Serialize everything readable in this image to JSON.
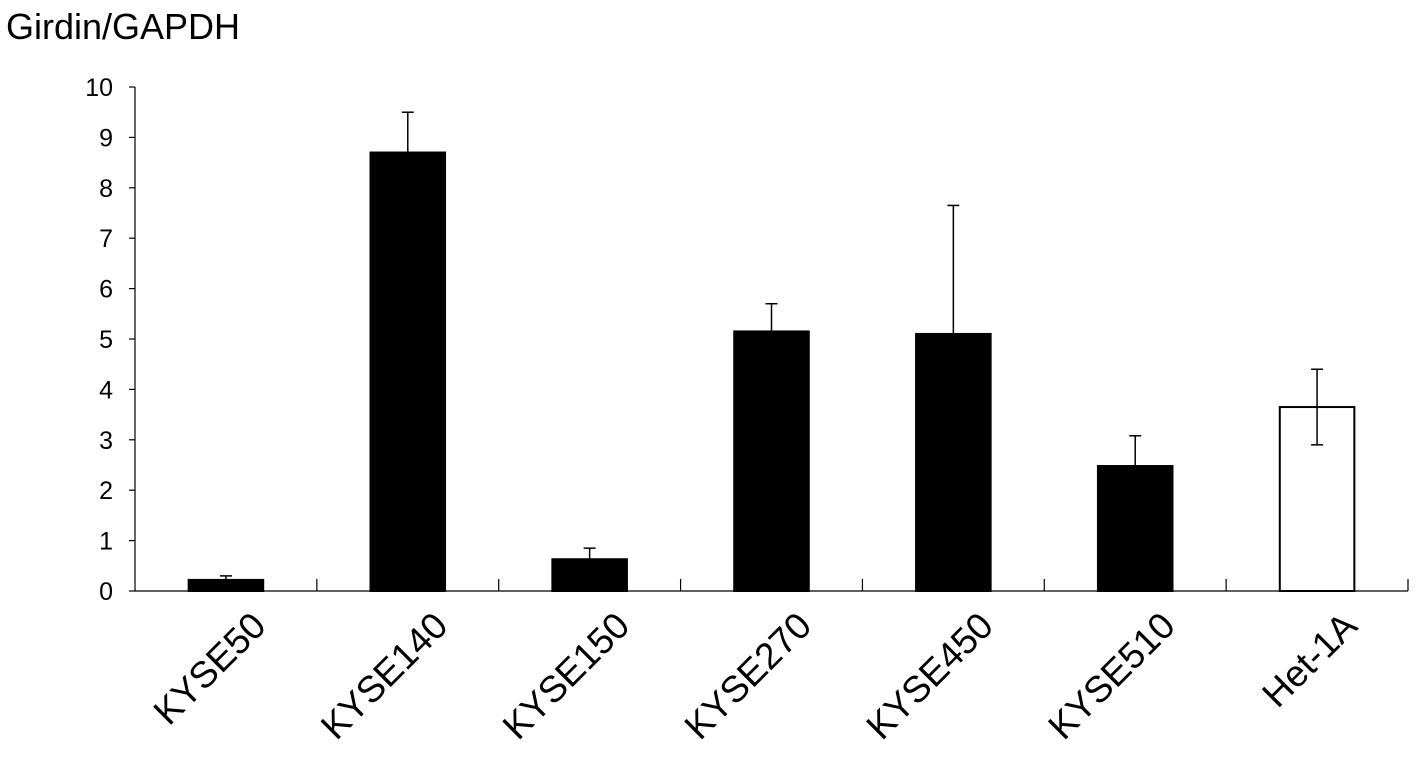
{
  "chart_data": {
    "type": "bar",
    "title": "Girdin/GAPDH",
    "xlabel": "",
    "ylabel": "",
    "ylim": [
      0,
      10
    ],
    "yticks": [
      0,
      1,
      2,
      3,
      4,
      5,
      6,
      7,
      8,
      9,
      10
    ],
    "categories": [
      "KYSE50",
      "KYSE140",
      "KYSE150",
      "KYSE270",
      "KYSE450",
      "KYSE510",
      "Het-1A"
    ],
    "values": [
      0.22,
      8.7,
      0.63,
      5.15,
      5.1,
      2.48,
      3.65
    ],
    "error_upper": [
      0.08,
      0.8,
      0.22,
      0.55,
      2.55,
      0.6,
      0.75
    ],
    "error_lower": [
      0,
      0,
      0,
      0,
      0,
      0,
      0.75
    ],
    "bar_fill": [
      "#000000",
      "#000000",
      "#000000",
      "#000000",
      "#000000",
      "#000000",
      "#ffffff"
    ],
    "grid": false,
    "legend": "none"
  }
}
